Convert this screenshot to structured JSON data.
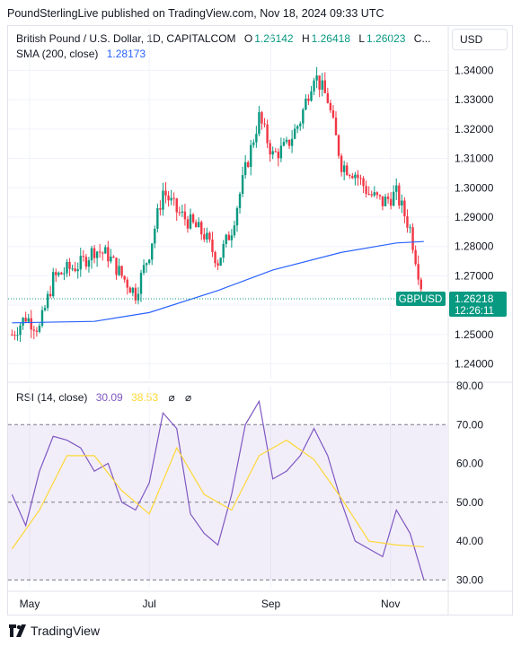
{
  "caption": "PoundSterlingLive published on TradingView.com, Nov 18, 2024 09:33 UTC",
  "header": {
    "symbol_title": "British Pound / U.S. Dollar, 1D, CAPITALCOM",
    "open_label": "O",
    "open_value": "1.26142",
    "high_label": "H",
    "high_value": "1.26418",
    "low_label": "L",
    "low_value": "1.26023",
    "close_label": "C...",
    "currency_button": "USD"
  },
  "sma_legend": {
    "label": "SMA (200, close)",
    "value": "1.28173"
  },
  "rsi_legend": {
    "label": "RSI (14, close)",
    "value": "30.09",
    "ma_value": "38.53",
    "icon1": "⌀",
    "icon2": "⌀"
  },
  "price_badge": {
    "symbol": "GBPUSD",
    "price": "1.26218",
    "countdown": "12:26:11"
  },
  "brand": {
    "name": "TradingView"
  },
  "colors": {
    "up": "#089981",
    "down": "#f23645",
    "sma": "#2962ff",
    "rsi": "#7e57c2",
    "rsi_ma": "#fdd835",
    "badge": "#089981"
  },
  "chart_data": [
    {
      "type": "candlestick",
      "title": "British Pound / U.S. Dollar, 1D, CAPITALCOM",
      "ylim": [
        1.235,
        1.345
      ],
      "y_ticks": [
        "1.34000",
        "1.33000",
        "1.32000",
        "1.31000",
        "1.30000",
        "1.29000",
        "1.28000",
        "1.27000",
        "1.26000",
        "1.25000",
        "1.24000"
      ],
      "x_ticks": [
        "May",
        "Jul",
        "Sep",
        "Nov"
      ],
      "close_series": {
        "x": [
          "2024-04-22",
          "2024-04-29",
          "2024-05-06",
          "2024-05-13",
          "2024-05-20",
          "2024-05-27",
          "2024-06-03",
          "2024-06-10",
          "2024-06-17",
          "2024-06-24",
          "2024-07-01",
          "2024-07-08",
          "2024-07-15",
          "2024-07-22",
          "2024-07-29",
          "2024-08-05",
          "2024-08-12",
          "2024-08-19",
          "2024-08-26",
          "2024-09-02",
          "2024-09-09",
          "2024-09-16",
          "2024-09-23",
          "2024-09-30",
          "2024-10-07",
          "2024-10-14",
          "2024-10-21",
          "2024-10-28",
          "2024-11-04",
          "2024-11-11",
          "2024-11-18"
        ],
        "y": [
          1.25,
          1.256,
          1.252,
          1.269,
          1.272,
          1.274,
          1.279,
          1.277,
          1.27,
          1.264,
          1.278,
          1.299,
          1.292,
          1.288,
          1.284,
          1.275,
          1.286,
          1.306,
          1.324,
          1.311,
          1.314,
          1.323,
          1.339,
          1.33,
          1.308,
          1.305,
          1.298,
          1.295,
          1.298,
          1.286,
          1.2622
        ]
      },
      "series": [
        {
          "name": "SMA (200, close)",
          "x": [
            "2024-04-22",
            "2024-06-03",
            "2024-07-01",
            "2024-08-05",
            "2024-09-02",
            "2024-10-07",
            "2024-11-04",
            "2024-11-18"
          ],
          "y": [
            1.254,
            1.2545,
            1.2575,
            1.265,
            1.272,
            1.278,
            1.2812,
            1.2817
          ]
        }
      ],
      "last_price": 1.26218
    },
    {
      "type": "line",
      "title": "RSI (14, close)",
      "ylim": [
        28,
        80
      ],
      "y_ticks": [
        "80.00",
        "70.00",
        "60.00",
        "50.00",
        "40.00",
        "30.00"
      ],
      "bands": [
        30,
        50,
        70
      ],
      "series": [
        {
          "name": "RSI (14, close)",
          "x": [
            "2024-04-22",
            "2024-04-29",
            "2024-05-06",
            "2024-05-13",
            "2024-05-20",
            "2024-05-27",
            "2024-06-03",
            "2024-06-10",
            "2024-06-17",
            "2024-06-24",
            "2024-07-01",
            "2024-07-08",
            "2024-07-15",
            "2024-07-22",
            "2024-07-29",
            "2024-08-05",
            "2024-08-12",
            "2024-08-19",
            "2024-08-26",
            "2024-09-02",
            "2024-09-09",
            "2024-09-16",
            "2024-09-23",
            "2024-09-30",
            "2024-10-07",
            "2024-10-14",
            "2024-10-21",
            "2024-10-28",
            "2024-11-04",
            "2024-11-11",
            "2024-11-18"
          ],
          "y": [
            52,
            44,
            58,
            67,
            66,
            64,
            58,
            60,
            50,
            48,
            55,
            73,
            69,
            47,
            42,
            39,
            52,
            70,
            76,
            56,
            58,
            62,
            69,
            62,
            50,
            40,
            38,
            36,
            48,
            42,
            30.09
          ]
        },
        {
          "name": "MA",
          "x": [
            "2024-04-22",
            "2024-05-06",
            "2024-05-20",
            "2024-06-03",
            "2024-06-17",
            "2024-07-01",
            "2024-07-15",
            "2024-07-29",
            "2024-08-12",
            "2024-08-26",
            "2024-09-09",
            "2024-09-23",
            "2024-10-07",
            "2024-10-21",
            "2024-11-04",
            "2024-11-18"
          ],
          "y": [
            38,
            48,
            62,
            62,
            53,
            47,
            64,
            52,
            48,
            62,
            66,
            61,
            51,
            40,
            39,
            38.53
          ]
        }
      ]
    }
  ]
}
